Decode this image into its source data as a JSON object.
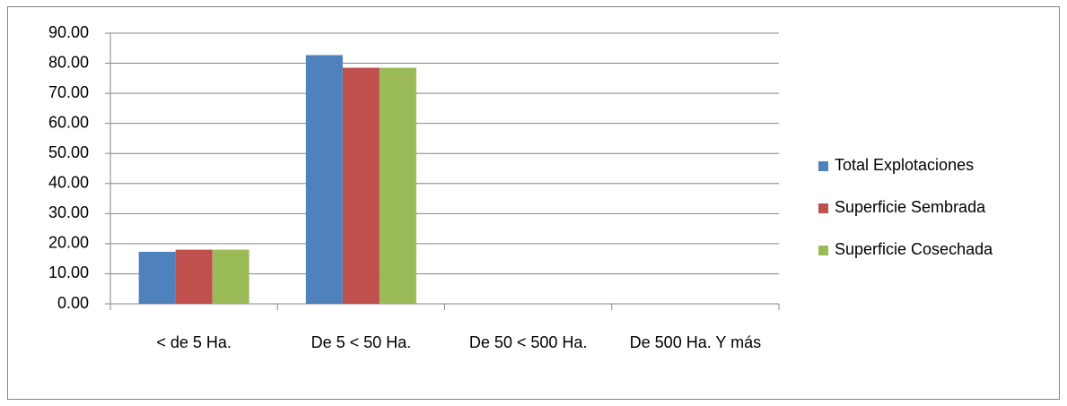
{
  "chart_data": {
    "type": "bar",
    "categories": [
      "< de 5 Ha.",
      "De 5 < 50 Ha.",
      "De 50 < 500 Ha.",
      "De 500 Ha. Y más"
    ],
    "series": [
      {
        "name": "Total Explotaciones",
        "color": "#4f81bd",
        "values": [
          17.3,
          82.7,
          0,
          0
        ]
      },
      {
        "name": "Superficie Sembrada",
        "color": "#c0504d",
        "values": [
          18.0,
          78.5,
          0,
          0
        ]
      },
      {
        "name": "Superficie Cosechada",
        "color": "#9bbb59",
        "values": [
          18.0,
          78.5,
          0,
          0
        ]
      }
    ],
    "ylim": [
      0,
      90
    ],
    "yticks": [
      {
        "value": 0,
        "label": "0.00"
      },
      {
        "value": 10,
        "label": "10.00"
      },
      {
        "value": 20,
        "label": "20.00"
      },
      {
        "value": 30,
        "label": "30.00"
      },
      {
        "value": 40,
        "label": "40.00"
      },
      {
        "value": 50,
        "label": "50.00"
      },
      {
        "value": 60,
        "label": "60.00"
      },
      {
        "value": 70,
        "label": "70.00"
      },
      {
        "value": 80,
        "label": "80.00"
      },
      {
        "value": 90,
        "label": "90.00"
      }
    ],
    "grid": true,
    "legend": "right"
  }
}
